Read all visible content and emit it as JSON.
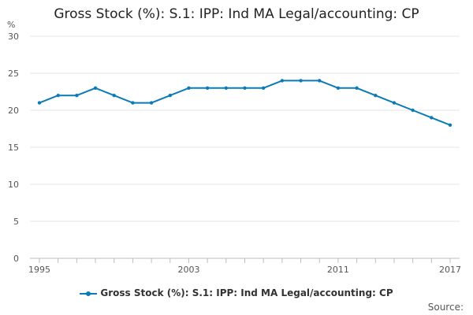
{
  "chart_data": {
    "type": "line",
    "title": "Gross Stock (%): S.1: IPP: Ind MA Legal/accounting: CP",
    "ylabel": "%",
    "xlabel": "",
    "x": [
      1995,
      1996,
      1997,
      1998,
      1999,
      2000,
      2001,
      2002,
      2003,
      2004,
      2005,
      2006,
      2007,
      2008,
      2009,
      2010,
      2011,
      2012,
      2013,
      2014,
      2015,
      2016,
      2017
    ],
    "x_tick_labels": [
      "1995",
      "2003",
      "2011",
      "2017"
    ],
    "y_tick_labels": [
      "0",
      "5",
      "10",
      "15",
      "20",
      "25",
      "30"
    ],
    "ylim": [
      0,
      30
    ],
    "grid": true,
    "legend_placement": "bottom",
    "series": [
      {
        "name": "Gross Stock (%): S.1: IPP: Ind MA Legal/accounting: CP",
        "color": "#0b7ab8",
        "values": [
          21,
          22,
          22,
          23,
          22,
          21,
          21,
          22,
          23,
          23,
          23,
          23,
          23,
          24,
          24,
          24,
          23,
          23,
          22,
          21,
          20,
          19,
          18
        ]
      }
    ]
  },
  "source_label": "Source:"
}
